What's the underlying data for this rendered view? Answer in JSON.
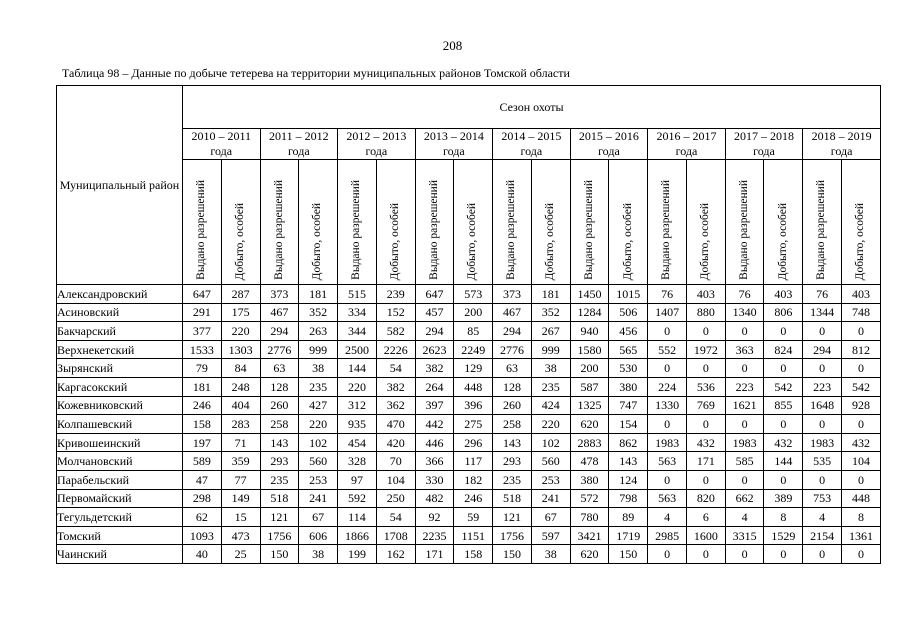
{
  "page": {
    "number": "208",
    "caption": "Таблица 98 – Данные по добыче тетерева на территории муниципальных районов Томской области",
    "background_color": "#ffffff",
    "text_color": "#000000",
    "border_color": "#000000"
  },
  "table": {
    "corner_header": "Муниципальный район",
    "group_header": "Сезон охоты",
    "seasons": [
      "2010 – 2011 года",
      "2011 – 2012 года",
      "2012 – 2013 года",
      "2013 – 2014 года",
      "2014 – 2015 года",
      "2015 – 2016 года",
      "2016 – 2017 года",
      "2017 – 2018 года",
      "2018 – 2019 года"
    ],
    "sub_headers": [
      "Выдано разрешений",
      "Добыто, особей"
    ],
    "rows": [
      {
        "district": "Александровский",
        "values": [
          647,
          287,
          373,
          181,
          515,
          239,
          647,
          573,
          373,
          181,
          1450,
          1015,
          76,
          403,
          76,
          403,
          76,
          403
        ]
      },
      {
        "district": "Асиновский",
        "values": [
          291,
          175,
          467,
          352,
          334,
          152,
          457,
          200,
          467,
          352,
          1284,
          506,
          1407,
          880,
          1340,
          806,
          1344,
          748
        ]
      },
      {
        "district": "Бакчарский",
        "values": [
          377,
          220,
          294,
          263,
          344,
          582,
          294,
          85,
          294,
          267,
          940,
          456,
          0,
          0,
          0,
          0,
          0,
          0
        ]
      },
      {
        "district": "Верхнекетский",
        "values": [
          1533,
          1303,
          2776,
          999,
          2500,
          2226,
          2623,
          2249,
          2776,
          999,
          1580,
          565,
          552,
          1972,
          363,
          824,
          294,
          812
        ]
      },
      {
        "district": "Зырянский",
        "values": [
          79,
          84,
          63,
          38,
          144,
          54,
          382,
          129,
          63,
          38,
          200,
          530,
          0,
          0,
          0,
          0,
          0,
          0
        ]
      },
      {
        "district": "Каргасокский",
        "values": [
          181,
          248,
          128,
          235,
          220,
          382,
          264,
          448,
          128,
          235,
          587,
          380,
          224,
          536,
          223,
          542,
          223,
          542
        ]
      },
      {
        "district": "Кожевниковский",
        "values": [
          246,
          404,
          260,
          427,
          312,
          362,
          397,
          396,
          260,
          424,
          1325,
          747,
          1330,
          769,
          1621,
          855,
          1648,
          928
        ]
      },
      {
        "district": "Колпашевский",
        "values": [
          158,
          283,
          258,
          220,
          935,
          470,
          442,
          275,
          258,
          220,
          620,
          154,
          0,
          0,
          0,
          0,
          0,
          0
        ]
      },
      {
        "district": "Кривошеинский",
        "values": [
          197,
          71,
          143,
          102,
          454,
          420,
          446,
          296,
          143,
          102,
          2883,
          862,
          1983,
          432,
          1983,
          432,
          1983,
          432
        ]
      },
      {
        "district": "Молчановский",
        "values": [
          589,
          359,
          293,
          560,
          328,
          70,
          366,
          117,
          293,
          560,
          478,
          143,
          563,
          171,
          585,
          144,
          535,
          104
        ]
      },
      {
        "district": "Парабельский",
        "values": [
          47,
          77,
          235,
          253,
          97,
          104,
          330,
          182,
          235,
          253,
          380,
          124,
          0,
          0,
          0,
          0,
          0,
          0
        ]
      },
      {
        "district": "Первомайский",
        "values": [
          298,
          149,
          518,
          241,
          592,
          250,
          482,
          246,
          518,
          241,
          572,
          798,
          563,
          820,
          662,
          389,
          753,
          448
        ]
      },
      {
        "district": "Тегульдетский",
        "values": [
          62,
          15,
          121,
          67,
          114,
          54,
          92,
          59,
          121,
          67,
          780,
          89,
          4,
          6,
          4,
          8,
          4,
          8
        ]
      },
      {
        "district": "Томский",
        "values": [
          1093,
          473,
          1756,
          606,
          1866,
          1708,
          2235,
          1151,
          1756,
          597,
          3421,
          1719,
          2985,
          1600,
          3315,
          1529,
          2154,
          1361
        ]
      },
      {
        "district": "Чаинский",
        "values": [
          40,
          25,
          150,
          38,
          199,
          162,
          171,
          158,
          150,
          38,
          620,
          150,
          0,
          0,
          0,
          0,
          0,
          0
        ]
      }
    ]
  }
}
